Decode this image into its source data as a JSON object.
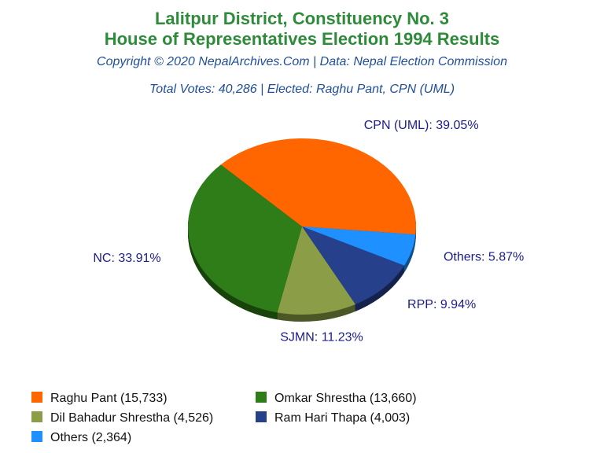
{
  "header": {
    "title_line1": "Lalitpur District, Constituency No. 3",
    "title_line2": "House of Representatives Election 1994 Results",
    "copyright": "Copyright © 2020 NepalArchives.Com | Data: Nepal Election Commission",
    "summary": "Total Votes: 40,286 | Elected: Raghu Pant, CPN (UML)"
  },
  "chart_data": {
    "type": "pie",
    "title": "Lalitpur District, Constituency No. 3 House of Representatives Election 1994 Results",
    "slices": [
      {
        "label": "CPN (UML): 39.05%",
        "legend": "Raghu Pant (15,733)",
        "value": 15733,
        "percent": 39.05,
        "color": "#ff6600"
      },
      {
        "label": "Others: 5.87%",
        "legend": "Others (2,364)",
        "value": 2364,
        "percent": 5.87,
        "color": "#1e90ff"
      },
      {
        "label": "RPP: 9.94%",
        "legend": "Ram Hari Thapa (4,003)",
        "value": 4003,
        "percent": 9.94,
        "color": "#27408b"
      },
      {
        "label": "SJMN: 11.23%",
        "legend": "Dil Bahadur Shrestha (4,526)",
        "value": 4526,
        "percent": 11.23,
        "color": "#8b9e47"
      },
      {
        "label": "NC: 33.91%",
        "legend": "Omkar Shrestha (13,660)",
        "value": 13660,
        "percent": 33.91,
        "color": "#2e7d18"
      }
    ],
    "legend_order": [
      0,
      4,
      3,
      2,
      1
    ],
    "legend_placement": "bottom"
  }
}
